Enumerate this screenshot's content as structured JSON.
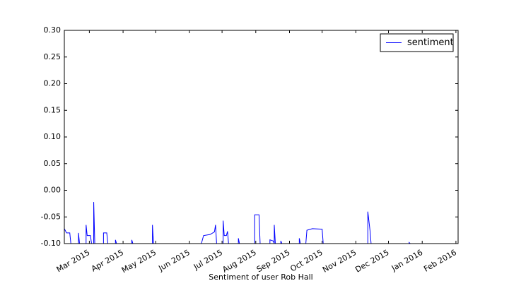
{
  "chart_data": {
    "type": "line",
    "xlabel": "Sentiment of user Rob Hall",
    "x": [
      "2015-02-06",
      "2015-02-08",
      "2015-02-11",
      "2015-02-12",
      "2015-02-19",
      "2015-02-19",
      "2015-02-20",
      "2015-02-26",
      "2015-02-26",
      "2015-02-27",
      "2015-03-02",
      "2015-03-03",
      "2015-03-05",
      "2015-03-05",
      "2015-03-06",
      "2015-03-14",
      "2015-03-14",
      "2015-03-17",
      "2015-03-18",
      "2015-03-25",
      "2015-03-25",
      "2015-03-26",
      "2015-04-09",
      "2015-04-09",
      "2015-04-10",
      "2015-04-28",
      "2015-04-28",
      "2015-04-29",
      "2015-06-12",
      "2015-06-14",
      "2015-06-20",
      "2015-06-24",
      "2015-06-25",
      "2015-06-26",
      "2015-07-02",
      "2015-07-02",
      "2015-07-03",
      "2015-07-05",
      "2015-07-06",
      "2015-07-07",
      "2015-07-16",
      "2015-07-16",
      "2015-07-17",
      "2015-07-31",
      "2015-07-31",
      "2015-08-04",
      "2015-08-05",
      "2015-08-14",
      "2015-08-14",
      "2015-08-17",
      "2015-08-18",
      "2015-08-18",
      "2015-08-19",
      "2015-08-24",
      "2015-08-24",
      "2015-08-25",
      "2015-09-10",
      "2015-09-10",
      "2015-09-11",
      "2015-09-16",
      "2015-09-17",
      "2015-09-22",
      "2015-10-01",
      "2015-10-02",
      "2015-11-12",
      "2015-11-12",
      "2015-11-14",
      "2015-11-15",
      "2015-12-20",
      "2015-12-20",
      "2015-12-21"
    ],
    "series": [
      {
        "name": "sentiment",
        "color": "#0000ff",
        "values": [
          -0.072,
          -0.08,
          -0.08,
          -0.1,
          -0.1,
          -0.08,
          -0.1,
          -0.1,
          -0.065,
          -0.085,
          -0.085,
          -0.1,
          -0.1,
          -0.022,
          -0.1,
          -0.1,
          -0.08,
          -0.08,
          -0.1,
          -0.1,
          -0.093,
          -0.1,
          -0.1,
          -0.093,
          -0.1,
          -0.1,
          -0.065,
          -0.1,
          -0.1,
          -0.085,
          -0.083,
          -0.078,
          -0.065,
          -0.1,
          -0.1,
          -0.057,
          -0.085,
          -0.085,
          -0.077,
          -0.1,
          -0.1,
          -0.09,
          -0.1,
          -0.1,
          -0.046,
          -0.046,
          -0.1,
          -0.1,
          -0.093,
          -0.095,
          -0.1,
          -0.065,
          -0.1,
          -0.1,
          -0.095,
          -0.1,
          -0.1,
          -0.09,
          -0.1,
          -0.1,
          -0.075,
          -0.072,
          -0.073,
          -0.1,
          -0.1,
          -0.04,
          -0.075,
          -0.1,
          -0.1,
          -0.098,
          -0.1
        ]
      }
    ],
    "xlim": [
      "2015-02-06",
      "2016-02-03"
    ],
    "xticks": [
      {
        "value": "2015-03-01",
        "label": "Mar 2015"
      },
      {
        "value": "2015-04-01",
        "label": "Apr 2015"
      },
      {
        "value": "2015-05-01",
        "label": "May 2015"
      },
      {
        "value": "2015-06-01",
        "label": "Jun 2015"
      },
      {
        "value": "2015-07-01",
        "label": "Jul 2015"
      },
      {
        "value": "2015-08-01",
        "label": "Aug 2015"
      },
      {
        "value": "2015-09-01",
        "label": "Sep 2015"
      },
      {
        "value": "2015-10-01",
        "label": "Oct 2015"
      },
      {
        "value": "2015-11-01",
        "label": "Nov 2015"
      },
      {
        "value": "2015-12-01",
        "label": "Dec 2015"
      },
      {
        "value": "2016-01-01",
        "label": "Jan 2016"
      },
      {
        "value": "2016-02-01",
        "label": "Feb 2016"
      }
    ],
    "ylim": [
      -0.1,
      0.3
    ],
    "yticks": [
      {
        "value": -0.1,
        "label": "-0.10"
      },
      {
        "value": -0.05,
        "label": "-0.05"
      },
      {
        "value": 0,
        "label": "0.00"
      },
      {
        "value": 0.05,
        "label": "0.05"
      },
      {
        "value": 0.1,
        "label": "0.10"
      },
      {
        "value": 0.15,
        "label": "0.15"
      },
      {
        "value": 0.2,
        "label": "0.20"
      },
      {
        "value": 0.25,
        "label": "0.25"
      },
      {
        "value": 0.3,
        "label": "0.30"
      }
    ],
    "legend": "upper right",
    "grid": false
  }
}
